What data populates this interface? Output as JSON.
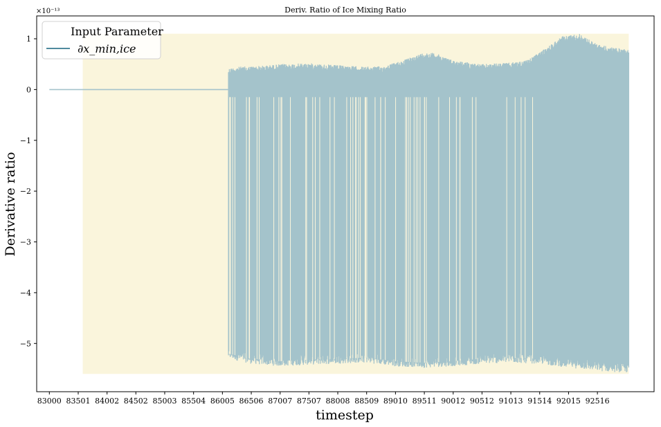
{
  "chart_data": {
    "type": "line",
    "title": "Deriv. Ratio of Ice Mixing Ratio",
    "xlabel": "timestep",
    "ylabel": "Derivative ratio",
    "y_scale_label": "×10⁻¹³",
    "xlim": [
      82780,
      93500
    ],
    "ylim": [
      -5.95,
      1.45
    ],
    "x_ticks": [
      83000,
      83501,
      84002,
      84502,
      85003,
      85504,
      86005,
      86506,
      87007,
      87507,
      88008,
      88509,
      89010,
      89511,
      90012,
      90512,
      91013,
      91514,
      92015,
      92516
    ],
    "y_ticks": [
      1,
      0,
      -1,
      -2,
      -3,
      -4,
      -5
    ],
    "y_tick_labels": [
      "1",
      "0",
      "−1",
      "−2",
      "−3",
      "−4",
      "−5"
    ],
    "grid": false,
    "legend": {
      "title": "Input Parameter",
      "placement": "top-left"
    },
    "highlight_region": {
      "x": [
        83580,
        93060
      ],
      "y": [
        -5.6,
        1.1
      ],
      "color": "#faf5dc"
    },
    "series": [
      {
        "name": "∂x_min,ice",
        "color": "#a4c3cb",
        "flat": {
          "x": [
            83000,
            86110
          ],
          "y": 0
        },
        "upper_envelope": {
          "x": [
            86110,
            86300,
            86700,
            87000,
            87500,
            88000,
            88500,
            88800,
            89200,
            89500,
            89700,
            90000,
            90500,
            91000,
            91300,
            91600,
            91900,
            92200,
            92500,
            92800,
            93060
          ],
          "y": [
            0.42,
            0.45,
            0.47,
            0.5,
            0.52,
            0.48,
            0.45,
            0.46,
            0.6,
            0.73,
            0.72,
            0.58,
            0.5,
            0.53,
            0.58,
            0.8,
            1.05,
            1.1,
            0.9,
            0.82,
            0.8
          ]
        },
        "lower_envelope": {
          "x": [
            86110,
            86500,
            87000,
            87500,
            88000,
            88500,
            89000,
            89500,
            90000,
            90500,
            91000,
            91500,
            91800,
            92200,
            92600,
            93060
          ],
          "y": [
            -5.3,
            -5.4,
            -5.45,
            -5.42,
            -5.4,
            -5.38,
            -5.45,
            -5.48,
            -5.45,
            -5.4,
            -5.38,
            -5.4,
            -5.45,
            -5.5,
            -5.55,
            -5.58
          ]
        }
      }
    ]
  }
}
